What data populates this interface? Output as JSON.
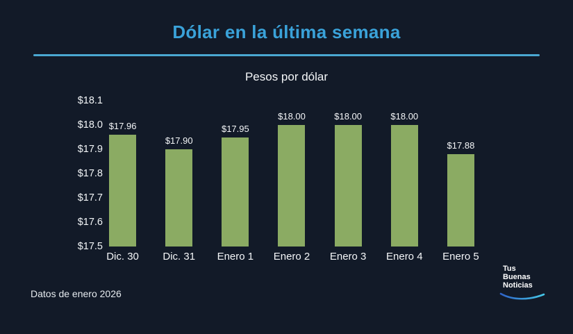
{
  "header": {
    "title": "Dólar en la última semana"
  },
  "subtitle": "Pesos por dólar",
  "chart_data": {
    "type": "bar",
    "title": "Dólar en la última semana",
    "subtitle": "Pesos por dólar",
    "categories": [
      "Dic. 30",
      "Dic. 31",
      "Enero 1",
      "Enero 2",
      "Enero 3",
      "Enero 4",
      "Enero 5"
    ],
    "values": [
      17.96,
      17.9,
      17.95,
      18.0,
      18.0,
      18.0,
      17.88
    ],
    "value_labels": [
      "$17.96",
      "$17.90",
      "$17.95",
      "$18.00",
      "$18.00",
      "$18.00",
      "$17.88"
    ],
    "ylim": [
      17.5,
      18.1
    ],
    "yticks": [
      {
        "value": 18.1,
        "label": "$18.1"
      },
      {
        "value": 18.0,
        "label": "$18.0"
      },
      {
        "value": 17.9,
        "label": "$17.9"
      },
      {
        "value": 17.8,
        "label": "$17.8"
      },
      {
        "value": 17.7,
        "label": "$17.7"
      },
      {
        "value": 17.6,
        "label": "$17.6"
      },
      {
        "value": 17.5,
        "label": "$17.5"
      }
    ],
    "grid": false,
    "legend": false,
    "bar_color": "#8bab63",
    "background": "#121a28"
  },
  "footer": {
    "note": "Datos de enero 2026"
  },
  "logo": {
    "line1": "Tus",
    "line2": "Buenas",
    "line3": "Noticias",
    "swoosh_color_start": "#2e62c8",
    "swoosh_color_end": "#45c8e8"
  },
  "colors": {
    "background": "#121a28",
    "title": "#3aa2d9",
    "divider": "#4aa8d2",
    "text": "#f4f6f8",
    "bar": "#8bab63"
  }
}
